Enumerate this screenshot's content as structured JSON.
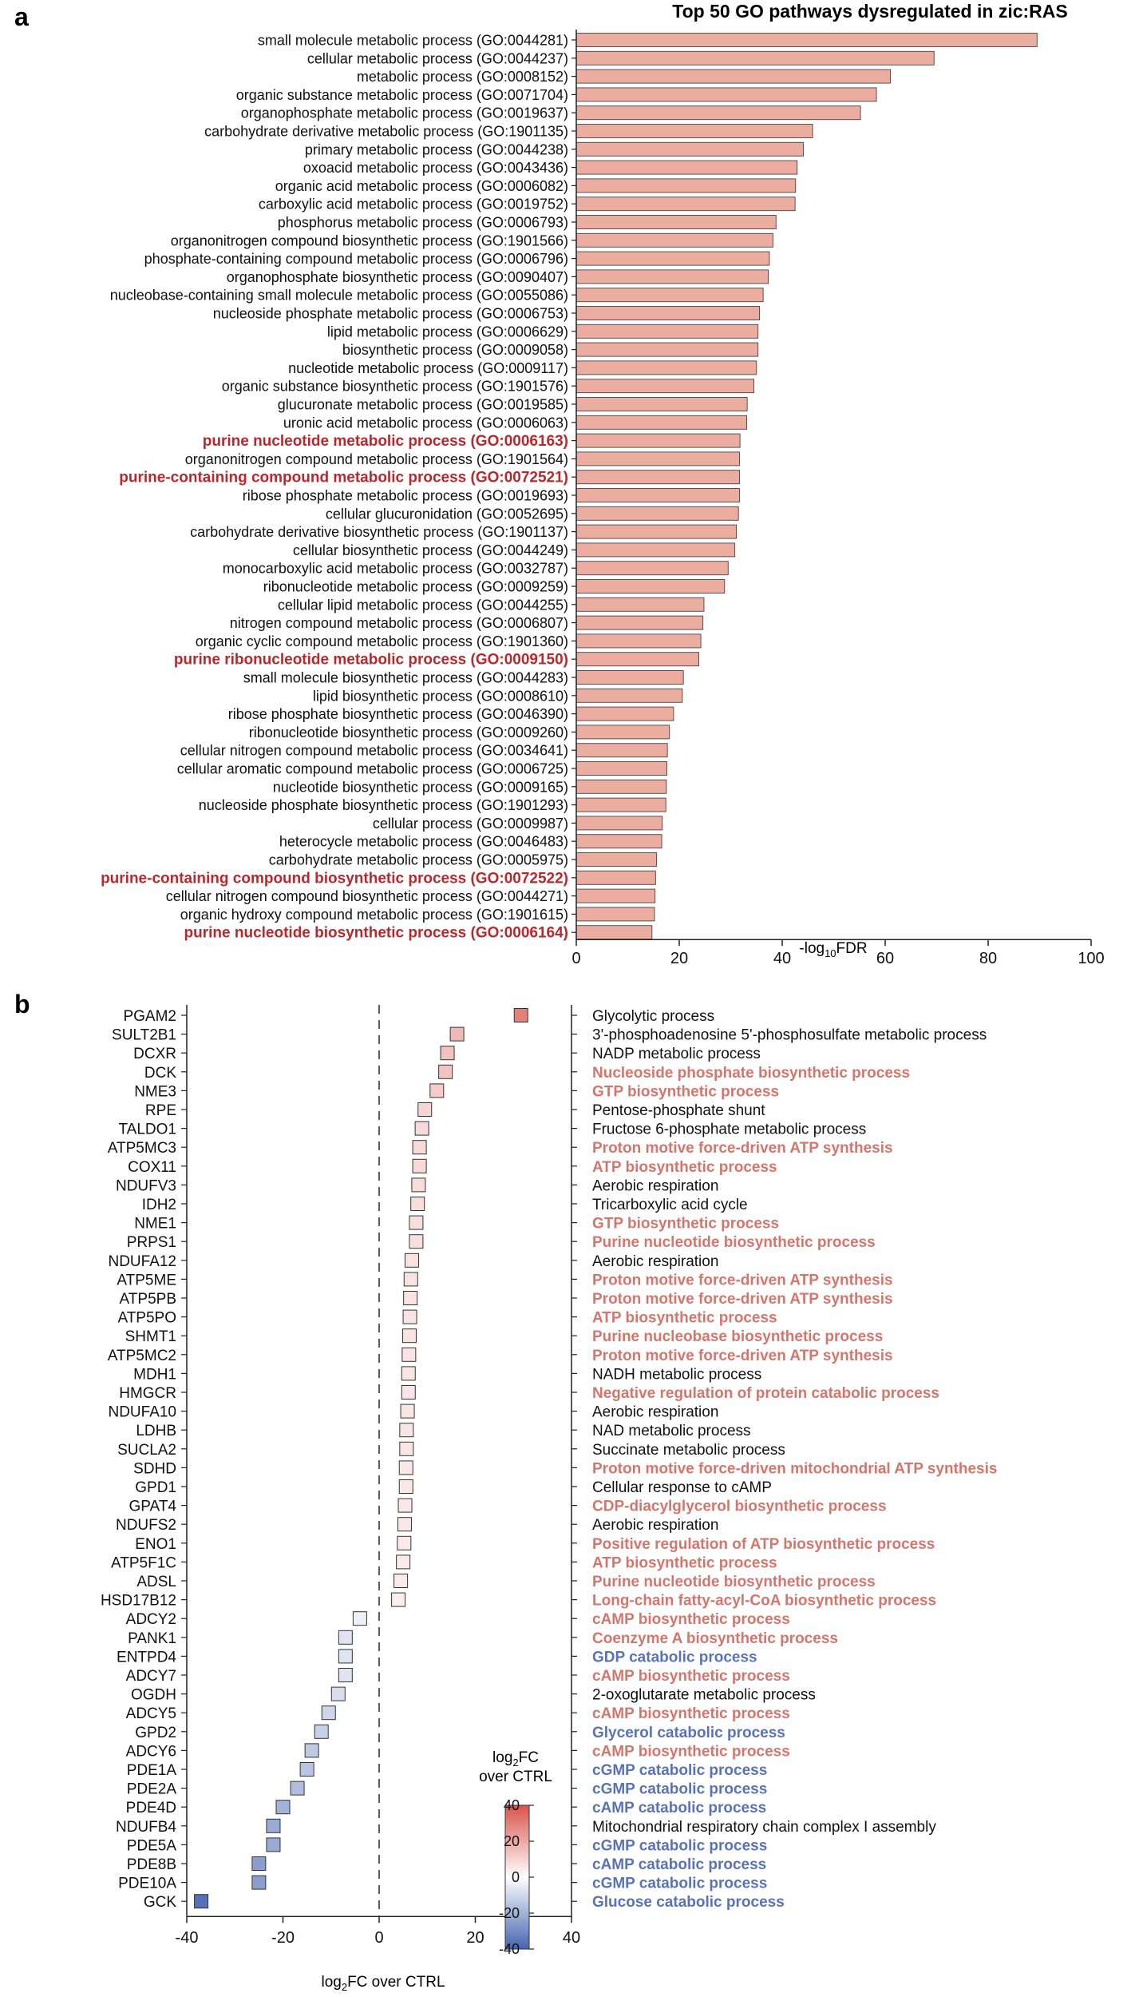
{
  "panel_a": {
    "letter": "a",
    "chart_data": {
      "type": "bar",
      "orientation": "horizontal",
      "title": "Top 50 GO pathways dysregulated in zic:RAS",
      "xlabel_main": "-log",
      "xlabel_sub": "10",
      "xlabel_tail": "FDR",
      "xlim": [
        0,
        100
      ],
      "xticks": [
        0,
        20,
        40,
        60,
        80,
        100
      ],
      "bar_color": "#ebada0",
      "highlight_color": "#b8282c",
      "categories": [
        "small molecule metabolic process (GO:0044281)",
        "cellular metabolic process (GO:0044237)",
        "metabolic process (GO:0008152)",
        "organic substance metabolic process (GO:0071704)",
        "organophosphate metabolic process (GO:0019637)",
        "carbohydrate derivative metabolic process (GO:1901135)",
        "primary metabolic process (GO:0044238)",
        "oxoacid metabolic process (GO:0043436)",
        "organic acid metabolic process (GO:0006082)",
        "carboxylic acid metabolic process (GO:0019752)",
        "phosphorus metabolic process (GO:0006793)",
        "organonitrogen compound biosynthetic process (GO:1901566)",
        "phosphate-containing compound metabolic process (GO:0006796)",
        "organophosphate biosynthetic process (GO:0090407)",
        "nucleobase-containing small molecule metabolic process (GO:0055086)",
        "nucleoside phosphate metabolic process (GO:0006753)",
        "lipid metabolic process (GO:0006629)",
        "biosynthetic process (GO:0009058)",
        "nucleotide metabolic process (GO:0009117)",
        "organic substance biosynthetic process (GO:1901576)",
        "glucuronate metabolic process (GO:0019585)",
        "uronic acid metabolic process (GO:0006063)",
        "purine nucleotide metabolic process (GO:0006163)",
        "organonitrogen compound metabolic process (GO:1901564)",
        "purine-containing compound metabolic process (GO:0072521)",
        "ribose phosphate metabolic process (GO:0019693)",
        "cellular glucuronidation (GO:0052695)",
        "carbohydrate derivative biosynthetic process (GO:1901137)",
        "cellular biosynthetic process (GO:0044249)",
        "monocarboxylic acid metabolic process (GO:0032787)",
        "ribonucleotide metabolic process (GO:0009259)",
        "cellular lipid metabolic process (GO:0044255)",
        "nitrogen compound metabolic process (GO:0006807)",
        "organic cyclic compound metabolic process (GO:1901360)",
        "purine ribonucleotide metabolic process (GO:0009150)",
        "small molecule biosynthetic process (GO:0044283)",
        "lipid biosynthetic process (GO:0008610)",
        "ribose phosphate biosynthetic process (GO:0046390)",
        "ribonucleotide biosynthetic process (GO:0009260)",
        "cellular nitrogen compound metabolic process (GO:0034641)",
        "cellular aromatic compound metabolic process (GO:0006725)",
        "nucleotide biosynthetic process (GO:0009165)",
        "nucleoside phosphate biosynthetic process (GO:1901293)",
        "cellular process (GO:0009987)",
        "heterocycle metabolic process (GO:0046483)",
        "carbohydrate metabolic process (GO:0005975)",
        "purine-containing compound biosynthetic process (GO:0072522)",
        "cellular nitrogen compound biosynthetic process (GO:0044271)",
        "organic hydroxy compound metabolic process (GO:1901615)",
        "purine nucleotide biosynthetic process (GO:0006164)"
      ],
      "values": [
        89.5,
        69.5,
        61.0,
        58.3,
        55.2,
        45.9,
        44.1,
        42.9,
        42.6,
        42.5,
        38.8,
        38.2,
        37.5,
        37.3,
        36.3,
        35.6,
        35.3,
        35.3,
        35.0,
        34.5,
        33.2,
        33.1,
        31.8,
        31.7,
        31.7,
        31.7,
        31.5,
        31.1,
        30.8,
        29.5,
        28.8,
        24.8,
        24.6,
        24.2,
        23.8,
        20.8,
        20.6,
        18.9,
        18.1,
        17.7,
        17.6,
        17.5,
        17.4,
        16.7,
        16.6,
        15.6,
        15.4,
        15.3,
        15.2,
        14.7
      ],
      "highlighted": [
        22,
        24,
        34,
        46,
        49
      ]
    }
  },
  "panel_b": {
    "letter": "b",
    "chart_data": {
      "type": "scatter",
      "xlabel_main": "log",
      "xlabel_sub": "2",
      "xlabel_tail": "FC over CTRL",
      "xlim": [
        -40,
        40
      ],
      "xticks": [
        -40,
        -20,
        0,
        20,
        40
      ],
      "color_scale": {
        "min": -40,
        "max": 40,
        "low": "#4565b0",
        "mid": "#ffffff",
        "high": "#d9534c"
      },
      "colorbar_title_main": "log",
      "colorbar_title_sub": "2",
      "colorbar_title_tail": "FC",
      "colorbar_title_line2": "over CTRL",
      "colorbar_ticks": [
        40,
        20,
        0,
        -20,
        -40
      ],
      "up_color": "#d4766c",
      "down_color": "#5a73b6",
      "genes": [
        "PGAM2",
        "SULT2B1",
        "DCXR",
        "DCK",
        "NME3",
        "RPE",
        "TALDO1",
        "ATP5MC3",
        "COX11",
        "NDUFV3",
        "IDH2",
        "NME1",
        "PRPS1",
        "NDUFA12",
        "ATP5ME",
        "ATP5PB",
        "ATP5PO",
        "SHMT1",
        "ATP5MC2",
        "MDH1",
        "HMGCR",
        "NDUFA10",
        "LDHB",
        "SUCLA2",
        "SDHD",
        "GPD1",
        "GPAT4",
        "NDUFS2",
        "ENO1",
        "ATP5F1C",
        "ADSL",
        "HSD17B12",
        "ADCY2",
        "PANK1",
        "ENTPD4",
        "ADCY7",
        "OGDH",
        "ADCY5",
        "GPD2",
        "ADCY6",
        "PDE1A",
        "PDE2A",
        "PDE4D",
        "NDUFB4",
        "PDE5A",
        "PDE8B",
        "PDE10A",
        "GCK"
      ],
      "values": [
        29.5,
        16.2,
        14.2,
        13.8,
        12.0,
        9.5,
        8.9,
        8.4,
        8.4,
        8.2,
        8.0,
        7.7,
        7.7,
        6.8,
        6.6,
        6.5,
        6.4,
        6.3,
        6.2,
        6.1,
        6.1,
        5.9,
        5.7,
        5.7,
        5.6,
        5.6,
        5.4,
        5.3,
        5.2,
        5.0,
        4.5,
        4.0,
        -4.0,
        -7.0,
        -7.0,
        -7.0,
        -8.5,
        -10.5,
        -12.0,
        -14.0,
        -15.0,
        -17.0,
        -20.0,
        -22.0,
        -22.0,
        -25.0,
        -25.0,
        -37.0
      ],
      "processes": [
        "Glycolytic process",
        "3'-phosphoadenosine 5'-phosphosulfate metabolic process",
        "NADP metabolic process",
        "Nucleoside phosphate biosynthetic process",
        "GTP biosynthetic process",
        "Pentose-phosphate shunt",
        "Fructose 6-phosphate metabolic process",
        "Proton motive force-driven ATP synthesis",
        "ATP biosynthetic process",
        "Aerobic respiration",
        "Tricarboxylic acid cycle",
        "GTP biosynthetic process",
        "Purine nucleotide biosynthetic process",
        "Aerobic respiration",
        "Proton motive force-driven ATP synthesis",
        "Proton motive force-driven ATP synthesis",
        "ATP biosynthetic process",
        "Purine nucleobase biosynthetic process",
        "Proton motive force-driven ATP synthesis",
        "NADH metabolic process",
        "Negative regulation of protein catabolic process",
        "Aerobic respiration",
        "NAD metabolic process",
        "Succinate metabolic process",
        "Proton motive force-driven mitochondrial ATP synthesis",
        "Cellular response to cAMP",
        "CDP-diacylglycerol biosynthetic process",
        "Aerobic respiration",
        "Positive regulation of ATP biosynthetic process",
        "ATP biosynthetic process",
        "Purine nucleotide biosynthetic process",
        "Long-chain fatty-acyl-CoA biosynthetic process",
        "cAMP biosynthetic process",
        "Coenzyme A biosynthetic process",
        "GDP catabolic process",
        "cAMP biosynthetic process",
        "2-oxoglutarate metabolic process",
        "cAMP biosynthetic process",
        "Glycerol catabolic process",
        "cAMP biosynthetic process",
        "cGMP catabolic process",
        "cGMP catabolic process",
        "cAMP catabolic process",
        "Mitochondrial respiratory chain complex I assembly",
        "cGMP catabolic process",
        "cAMP catabolic process",
        "cGMP catabolic process",
        "Glucose catabolic process"
      ],
      "process_style": [
        "n",
        "n",
        "n",
        "u",
        "u",
        "n",
        "n",
        "u",
        "u",
        "n",
        "n",
        "u",
        "u",
        "n",
        "u",
        "u",
        "u",
        "u",
        "u",
        "n",
        "u",
        "n",
        "n",
        "n",
        "u",
        "n",
        "u",
        "n",
        "u",
        "u",
        "u",
        "u",
        "u",
        "u",
        "d",
        "u",
        "n",
        "u",
        "d",
        "u",
        "d",
        "d",
        "d",
        "n",
        "d",
        "d",
        "d",
        "d"
      ]
    }
  }
}
